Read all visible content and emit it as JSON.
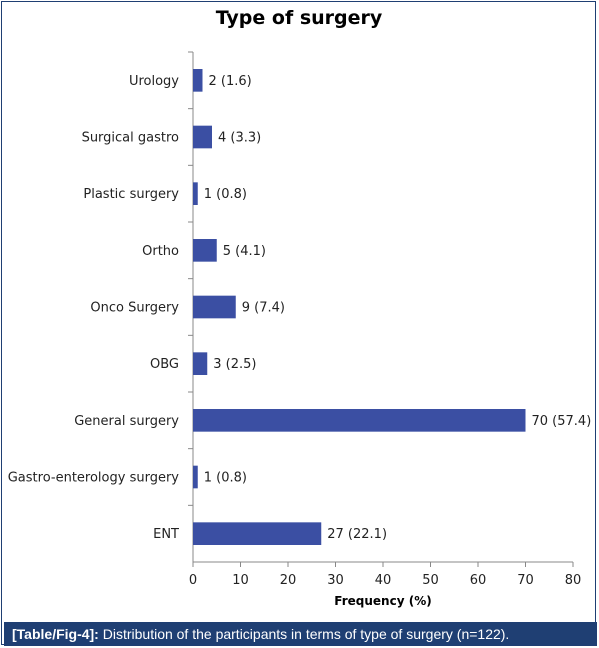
{
  "figure": {
    "caption_tag": "[Table/Fig-4]:",
    "caption_text": " Distribution of the participants in terms of type of surgery (n=122)."
  },
  "chart_data": {
    "type": "bar",
    "orientation": "horizontal",
    "title": "Type of surgery",
    "xlabel": "Frequency (%)",
    "ylabel": "",
    "xlim": [
      0,
      80
    ],
    "xticks": [
      0,
      10,
      20,
      30,
      40,
      50,
      60,
      70,
      80
    ],
    "categories": [
      "Urology",
      "Surgical gastro",
      "Plastic surgery",
      "Ortho",
      "Onco Surgery",
      "OBG",
      "General surgery",
      "Gastro-enterology surgery",
      "ENT"
    ],
    "values": [
      2,
      4,
      1,
      5,
      9,
      3,
      70,
      1,
      27
    ],
    "percentages": [
      1.6,
      3.3,
      0.8,
      4.1,
      7.4,
      2.5,
      57.4,
      0.8,
      22.1
    ],
    "data_labels": [
      "2 (1.6)",
      "4 (3.3)",
      "1 (0.8)",
      "5 (4.1)",
      "9 (7.4)",
      "3 (2.5)",
      "70 (57.4)",
      "1 (0.8)",
      "27 (22.1)"
    ],
    "bar_color": "#3b4fa3",
    "grid": false,
    "legend": "none"
  }
}
